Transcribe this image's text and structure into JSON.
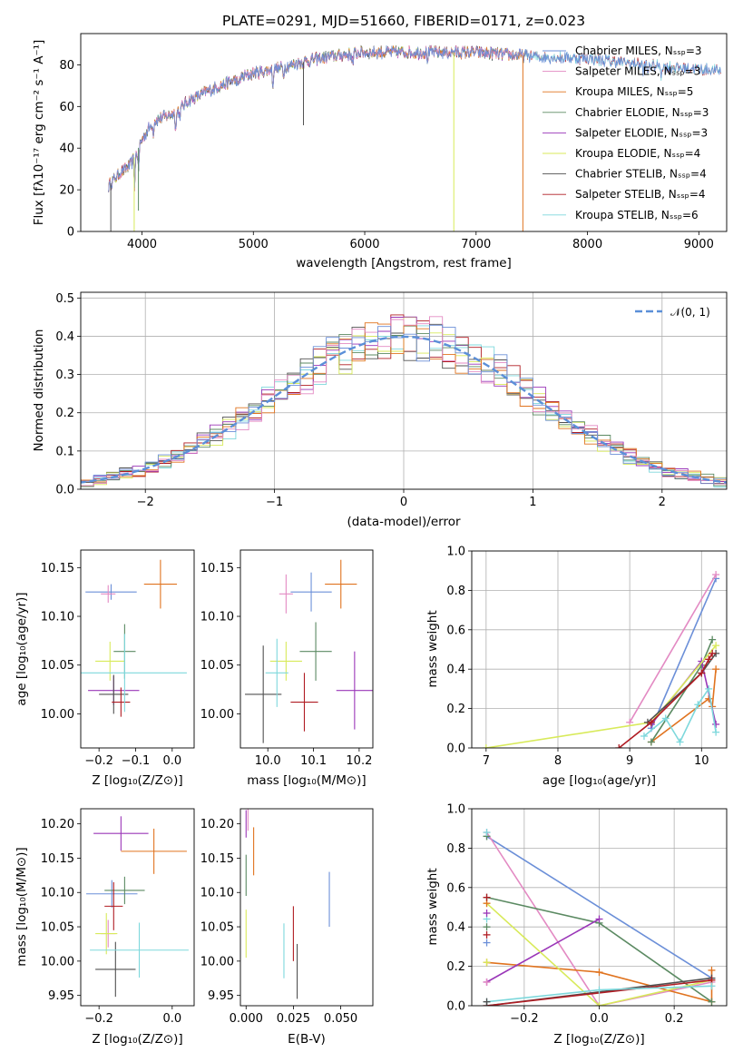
{
  "series_colors": [
    "#6b8fd8",
    "#e38ac3",
    "#e0731f",
    "#5b8a62",
    "#9a36b8",
    "#d8ea5a",
    "#505050",
    "#b01c23",
    "#7ed8dc"
  ],
  "chart_data": [
    {
      "id": "spectrum",
      "type": "line",
      "title": "PLATE=0291, MJD=51660, FIBERID=0171, z=0.023",
      "xlabel": "wavelength [Angstrom, rest frame]",
      "ylabel": "Flux [fλ10⁻¹⁷ erg cm⁻² s⁻¹ A⁻¹]",
      "xlim": [
        3450,
        9250
      ],
      "ylim": [
        0,
        95
      ],
      "xticks": [
        "4000",
        "5000",
        "6000",
        "7000",
        "8000",
        "9000"
      ],
      "yticks": [
        "0",
        "20",
        "40",
        "60",
        "80"
      ],
      "legend_position": "top-right",
      "legend": [
        "Chabrier MILES, Nₛₛₚ=3",
        "Salpeter MILES, Nₛₛₚ=3",
        "Kroupa MILES, Nₛₛₚ=5",
        "Chabrier ELODIE, Nₛₛₚ=3",
        "Salpeter ELODIE, Nₛₛₚ=3",
        "Kroupa ELODIE, Nₛₛₚ=4",
        "Chabrier STELIB, Nₛₛₚ=4",
        "Salpeter STELIB, Nₛₛₚ=4",
        "Kroupa STELIB, Nₛₛₚ=6"
      ],
      "continuum": {
        "x": [
          3700,
          3800,
          3900,
          4000,
          4100,
          4200,
          4300,
          4400,
          4500,
          4700,
          5000,
          5200,
          5500,
          5700,
          6000,
          6500,
          7000,
          7500,
          8000,
          8500,
          9000,
          9200
        ],
        "y": [
          22,
          28,
          32,
          44,
          53,
          55,
          57,
          62,
          65,
          70,
          76,
          78,
          82,
          84,
          86,
          86,
          86,
          84,
          83,
          80,
          78,
          77
        ]
      },
      "spikes": [
        {
          "x": 3720,
          "y": 0,
          "series": 6
        },
        {
          "x": 3930,
          "y": 0,
          "series": 5
        },
        {
          "x": 3968,
          "y": 10,
          "series": 3
        },
        {
          "x": 5450,
          "y": 51,
          "series": 6
        },
        {
          "x": 6800,
          "y": 0,
          "series": 5
        },
        {
          "x": 7420,
          "y": 0,
          "series": 2
        }
      ]
    },
    {
      "id": "residuals",
      "type": "histogram",
      "xlabel": "(data-model)/error",
      "ylabel": "Normed distribution",
      "xlim": [
        -2.5,
        2.5
      ],
      "ylim": [
        0,
        0.515
      ],
      "xticks": [
        "−2",
        "−1",
        "0",
        "1",
        "2"
      ],
      "yticks": [
        "0.0",
        "0.1",
        "0.2",
        "0.3",
        "0.4",
        "0.5"
      ],
      "grid": true,
      "bin_width": 0.1,
      "bin_start": -2.5,
      "legend_position": "top-right",
      "legend": [
        "𝒩(0, 1)"
      ],
      "reference_curve": {
        "name": "𝒩(0, 1)",
        "color": "#5b8fd8",
        "dash": true
      }
    },
    {
      "id": "age_vs_Z",
      "type": "errorbar",
      "xlabel": "Z [log₁₀(Z/Z⊙)]",
      "ylabel": "age  [log₁₀(age/yr)]",
      "xlim": [
        -0.25,
        0.06
      ],
      "ylim": [
        9.965,
        10.168
      ],
      "xticks": [
        {
          "v": -0.2,
          "t": "−0.2"
        },
        {
          "v": -0.1,
          "t": "−0.1"
        },
        {
          "v": 0.0,
          "t": "0.0"
        }
      ],
      "yticks": [
        {
          "v": 10.0,
          "t": "10.00"
        },
        {
          "v": 10.05,
          "t": "10.05"
        },
        {
          "v": 10.1,
          "t": "10.10"
        },
        {
          "v": 10.15,
          "t": "10.15"
        }
      ],
      "points": [
        {
          "x": -0.167,
          "y": 10.125,
          "xerr": 0.07,
          "yerr": 0.008
        },
        {
          "x": -0.175,
          "y": 10.123,
          "xerr": 0.02,
          "yerr": 0.009
        },
        {
          "x": -0.032,
          "y": 10.133,
          "xerr": 0.045,
          "yerr": 0.025
        },
        {
          "x": -0.13,
          "y": 10.064,
          "xerr": 0.03,
          "yerr": 0.028
        },
        {
          "x": -0.16,
          "y": 10.024,
          "xerr": 0.07,
          "yerr": 0.015
        },
        {
          "x": -0.17,
          "y": 10.054,
          "xerr": 0.04,
          "yerr": 0.02
        },
        {
          "x": -0.16,
          "y": 10.02,
          "xerr": 0.04,
          "yerr": 0.02
        },
        {
          "x": -0.14,
          "y": 10.012,
          "xerr": 0.025,
          "yerr": 0.015
        },
        {
          "x": -0.13,
          "y": 10.042,
          "xerr": 0.17,
          "yerr": 0.04
        }
      ]
    },
    {
      "id": "age_vs_mass",
      "type": "errorbar",
      "xlabel": "mass [log₁₀(M/M⊙)]",
      "ylabel": "",
      "xlim": [
        9.94,
        10.23
      ],
      "ylim": [
        9.965,
        10.168
      ],
      "xticks": [
        {
          "v": 10.0,
          "t": "10.0"
        },
        {
          "v": 10.1,
          "t": "10.1"
        },
        {
          "v": 10.2,
          "t": "10.2"
        }
      ],
      "yticks": [
        {
          "v": 10.0,
          "t": "10.00"
        },
        {
          "v": 10.05,
          "t": "10.05"
        },
        {
          "v": 10.1,
          "t": "10.10"
        },
        {
          "v": 10.15,
          "t": "10.15"
        }
      ],
      "points": [
        {
          "x": 10.095,
          "y": 10.125,
          "xerr": 0.045,
          "yerr": 0.02
        },
        {
          "x": 10.04,
          "y": 10.123,
          "xerr": 0.015,
          "yerr": 0.02
        },
        {
          "x": 10.16,
          "y": 10.133,
          "xerr": 0.035,
          "yerr": 0.025
        },
        {
          "x": 10.105,
          "y": 10.064,
          "xerr": 0.035,
          "yerr": 0.03
        },
        {
          "x": 10.19,
          "y": 10.024,
          "xerr": 0.04,
          "yerr": 0.04
        },
        {
          "x": 10.04,
          "y": 10.054,
          "xerr": 0.035,
          "yerr": 0.02
        },
        {
          "x": 9.99,
          "y": 10.02,
          "xerr": 0.04,
          "yerr": 0.05
        },
        {
          "x": 10.08,
          "y": 10.012,
          "xerr": 0.03,
          "yerr": 0.03
        },
        {
          "x": 10.02,
          "y": 10.042,
          "xerr": 0.025,
          "yerr": 0.035
        }
      ]
    },
    {
      "id": "weight_vs_age",
      "type": "line",
      "xlabel": "age  [log₁₀(age/yr)]",
      "ylabel": "mass weight",
      "xlim": [
        6.8,
        10.35
      ],
      "ylim": [
        0,
        1.0
      ],
      "xticks": [
        {
          "v": 7,
          "t": "7"
        },
        {
          "v": 8,
          "t": "8"
        },
        {
          "v": 9,
          "t": "9"
        },
        {
          "v": 10,
          "t": "10"
        }
      ],
      "yticks": [
        {
          "v": 0,
          "t": "0.0"
        },
        {
          "v": 0.2,
          "t": "0.2"
        },
        {
          "v": 0.4,
          "t": "0.4"
        },
        {
          "v": 0.6,
          "t": "0.6"
        },
        {
          "v": 0.8,
          "t": "0.8"
        },
        {
          "v": 1.0,
          "t": "1.0"
        }
      ],
      "grid": true,
      "series": [
        {
          "x": [
            9.3,
            10.2
          ],
          "y": [
            0.1,
            0.86
          ]
        },
        {
          "x": [
            9.0,
            10.2
          ],
          "y": [
            0.13,
            0.88
          ]
        },
        {
          "x": [
            9.3,
            10.1,
            10.15,
            10.2
          ],
          "y": [
            0.03,
            0.25,
            0.21,
            0.4
          ]
        },
        {
          "x": [
            9.3,
            10.0,
            10.15
          ],
          "y": [
            0.03,
            0.42,
            0.55
          ]
        },
        {
          "x": [
            9.3,
            10.0,
            10.2
          ],
          "y": [
            0.12,
            0.44,
            0.12
          ]
        },
        {
          "x": [
            7.0,
            9.3,
            10.2
          ],
          "y": [
            0.0,
            0.13,
            0.52
          ]
        },
        {
          "x": [
            9.25,
            10.0,
            10.2
          ],
          "y": [
            0.13,
            0.38,
            0.48
          ]
        },
        {
          "x": [
            8.85,
            9.3,
            10.0,
            10.1,
            10.15
          ],
          "y": [
            0.0,
            0.13,
            0.38,
            0.45,
            0.48
          ]
        },
        {
          "x": [
            9.2,
            9.5,
            9.7,
            9.95,
            10.1,
            10.2
          ],
          "y": [
            0.06,
            0.15,
            0.03,
            0.22,
            0.3,
            0.08
          ]
        }
      ]
    },
    {
      "id": "mass_vs_Z",
      "type": "errorbar",
      "xlabel": "Z [log₁₀(Z/Z⊙)]",
      "ylabel": "mass [log₁₀(M/M⊙)]",
      "xlim": [
        -0.25,
        0.06
      ],
      "ylim": [
        9.935,
        10.222
      ],
      "xticks": [
        {
          "v": -0.2,
          "t": "−0.2"
        },
        {
          "v": 0.0,
          "t": "0.0"
        }
      ],
      "yticks": [
        {
          "v": 9.95,
          "t": "9.95"
        },
        {
          "v": 10.0,
          "t": "10.00"
        },
        {
          "v": 10.05,
          "t": "10.05"
        },
        {
          "v": 10.1,
          "t": "10.10"
        },
        {
          "v": 10.15,
          "t": "10.15"
        },
        {
          "v": 10.2,
          "t": "10.20"
        }
      ],
      "points": [
        {
          "x": -0.165,
          "y": 10.098,
          "xerr": 0.07,
          "yerr": 0.02
        },
        {
          "x": -0.175,
          "y": 10.04,
          "xerr": 0.02,
          "yerr": 0.02
        },
        {
          "x": -0.05,
          "y": 10.16,
          "xerr": 0.09,
          "yerr": 0.033
        },
        {
          "x": -0.13,
          "y": 10.103,
          "xerr": 0.055,
          "yerr": 0.02
        },
        {
          "x": -0.14,
          "y": 10.186,
          "xerr": 0.075,
          "yerr": 0.025
        },
        {
          "x": -0.18,
          "y": 10.04,
          "xerr": 0.03,
          "yerr": 0.03
        },
        {
          "x": -0.155,
          "y": 9.988,
          "xerr": 0.055,
          "yerr": 0.04
        },
        {
          "x": -0.16,
          "y": 10.08,
          "xerr": 0.025,
          "yerr": 0.035
        },
        {
          "x": -0.09,
          "y": 10.016,
          "xerr": 0.135,
          "yerr": 0.04
        }
      ]
    },
    {
      "id": "mass_vs_ebv",
      "type": "errorbar",
      "xlabel": "E(B-V)",
      "ylabel": "",
      "xlim": [
        -0.003,
        0.067
      ],
      "ylim": [
        9.935,
        10.222
      ],
      "xticks": [
        {
          "v": 0.0,
          "t": "0.000"
        },
        {
          "v": 0.025,
          "t": "0.025"
        },
        {
          "v": 0.05,
          "t": "0.050"
        }
      ],
      "yticks": [
        {
          "v": 9.95,
          "t": "9.95"
        },
        {
          "v": 10.0,
          "t": "10.00"
        },
        {
          "v": 10.05,
          "t": "10.05"
        },
        {
          "v": 10.1,
          "t": "10.10"
        },
        {
          "v": 10.15,
          "t": "10.15"
        },
        {
          "v": 10.2,
          "t": "10.20"
        }
      ],
      "points": [
        {
          "x": 0.044,
          "y": 10.09,
          "xerr": 0,
          "yerr": 0.04
        },
        {
          "x": 0.001,
          "y": 10.21,
          "xerr": 0,
          "yerr": 0.02
        },
        {
          "x": 0.004,
          "y": 10.16,
          "xerr": 0,
          "yerr": 0.035
        },
        {
          "x": 0.0,
          "y": 10.125,
          "xerr": 0,
          "yerr": 0.03
        },
        {
          "x": 0.0,
          "y": 10.2,
          "xerr": 0,
          "yerr": 0.02
        },
        {
          "x": 0.0,
          "y": 10.04,
          "xerr": 0,
          "yerr": 0.035
        },
        {
          "x": 0.027,
          "y": 9.985,
          "xerr": 0,
          "yerr": 0.04
        },
        {
          "x": 0.025,
          "y": 10.04,
          "xerr": 0,
          "yerr": 0.04
        },
        {
          "x": 0.02,
          "y": 10.015,
          "xerr": 0,
          "yerr": 0.04
        }
      ]
    },
    {
      "id": "weight_vs_Z",
      "type": "line",
      "xlabel": "Z [log₁₀(Z/Z⊙)]",
      "ylabel": "mass weight",
      "xlim": [
        -0.34,
        0.34
      ],
      "ylim": [
        0,
        1.0
      ],
      "xticks": [
        {
          "v": -0.2,
          "t": "−0.2"
        },
        {
          "v": 0.0,
          "t": "0.0"
        },
        {
          "v": 0.2,
          "t": "0.2"
        }
      ],
      "yticks": [
        {
          "v": 0,
          "t": "0.0"
        },
        {
          "v": 0.2,
          "t": "0.2"
        },
        {
          "v": 0.4,
          "t": "0.4"
        },
        {
          "v": 0.6,
          "t": "0.6"
        },
        {
          "v": 0.8,
          "t": "0.8"
        },
        {
          "v": 1.0,
          "t": "1.0"
        }
      ],
      "grid": true,
      "series": [
        {
          "x": [
            -0.3,
            0.3
          ],
          "y": [
            0.86,
            0.14
          ]
        },
        {
          "x": [
            -0.3,
            0.0,
            0.3
          ],
          "y": [
            0.88,
            0.0,
            0.12
          ]
        },
        {
          "x": [
            -0.3,
            0.0,
            0.3,
            0.3
          ],
          "y": [
            0.22,
            0.17,
            0.02,
            0.18
          ]
        },
        {
          "x": [
            -0.3,
            0.0,
            0.3
          ],
          "y": [
            0.55,
            0.42,
            0.02
          ]
        },
        {
          "x": [
            -0.3,
            0.0
          ],
          "y": [
            0.12,
            0.44
          ]
        },
        {
          "x": [
            -0.3,
            0.0,
            0.3
          ],
          "y": [
            0.52,
            0.0,
            0.13
          ]
        },
        {
          "x": [
            -0.3,
            0.3
          ],
          "y": [
            0.0,
            0.14
          ]
        },
        {
          "x": [
            -0.3,
            0.3
          ],
          "y": [
            0.0,
            0.13
          ]
        },
        {
          "x": [
            -0.3,
            0.0,
            0.3
          ],
          "y": [
            0.02,
            0.08,
            0.1
          ]
        }
      ],
      "markers_at_left": {
        "x": -0.3,
        "y": [
          0.36,
          0.4,
          0.44,
          0.47,
          0.32,
          0.22,
          0.12,
          0.02,
          0.52,
          0.55,
          0.86,
          0.88
        ]
      }
    }
  ]
}
